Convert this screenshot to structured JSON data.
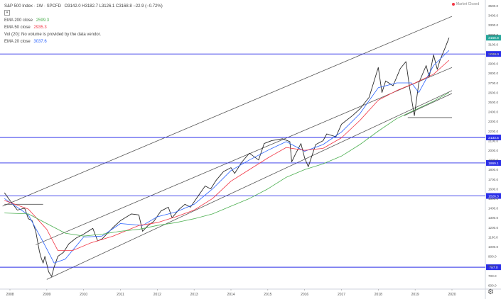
{
  "header": {
    "title": "S&P 500 Index · 1W · SPCFD",
    "ohlc": "O3142.0 H3182.7 L3126.1 C3168.8 −22.9 (−0.72%)",
    "market_status": "Market Closed"
  },
  "legend": [
    {
      "label": "EMA 200 close",
      "value": "2599.3",
      "color": "#4caf50"
    },
    {
      "label": "EMA 50 close",
      "value": "2935.3",
      "color": "#f23645"
    },
    {
      "label": "Vol (20): No volume is provided by the data vendor.",
      "value": "",
      "color": "#444444"
    },
    {
      "label": "EMA 20 close",
      "value": "3037.6",
      "color": "#2962ff"
    }
  ],
  "chart_data": {
    "type": "line",
    "title": "S&P 500 Index",
    "xlabel": "",
    "ylabel": "",
    "x_ticks": [
      "2008",
      "2009",
      "2010",
      "2011",
      "2012",
      "2013",
      "2014",
      "2015",
      "2016",
      "2017",
      "2018",
      "2019",
      "2020"
    ],
    "y_ticks": [
      "600.0",
      "700.0",
      "800.0",
      "900.0",
      "1000.0",
      "1100.0",
      "1200.0",
      "1300.0",
      "1400.0",
      "1500.0",
      "1600.0",
      "1700.0",
      "1800.0",
      "1900.0",
      "2000.0",
      "2100.0",
      "2200.0",
      "2300.0",
      "2400.0",
      "2500.0",
      "2600.0",
      "2700.0",
      "2800.0",
      "2900.0",
      "3000.0",
      "3100.0",
      "3200.0",
      "3300.0",
      "3400.0",
      "3500.0"
    ],
    "xlim": [
      2007.8,
      2020.0
    ],
    "ylim": [
      560,
      3560
    ],
    "series": [
      {
        "name": "S&P 500 Index",
        "color": "#2b2b2b",
        "x": [
          2007.85,
          2008.0,
          2008.2,
          2008.4,
          2008.5,
          2008.6,
          2008.7,
          2008.8,
          2008.85,
          2008.9,
          2008.95,
          2009.05,
          2009.13,
          2009.2,
          2009.3,
          2009.45,
          2009.6,
          2009.8,
          2010.0,
          2010.25,
          2010.38,
          2010.5,
          2010.65,
          2010.8,
          2011.0,
          2011.3,
          2011.5,
          2011.6,
          2011.75,
          2011.9,
          2012.1,
          2012.3,
          2012.4,
          2012.6,
          2012.75,
          2012.9,
          2013.1,
          2013.3,
          2013.45,
          2013.6,
          2013.8,
          2014.0,
          2014.1,
          2014.3,
          2014.5,
          2014.75,
          2014.9,
          2015.1,
          2015.4,
          2015.6,
          2015.65,
          2015.75,
          2015.9,
          2016.0,
          2016.1,
          2016.3,
          2016.5,
          2016.6,
          2016.85,
          2017.0,
          2017.3,
          2017.5,
          2017.75,
          2018.0,
          2018.1,
          2018.2,
          2018.4,
          2018.6,
          2018.75,
          2018.85,
          2018.98,
          2019.1,
          2019.3,
          2019.38,
          2019.5,
          2019.6,
          2019.68,
          2019.8,
          2019.92
        ],
        "values": [
          1560,
          1480,
          1380,
          1400,
          1290,
          1270,
          1160,
          950,
          880,
          830,
          900,
          740,
          690,
          790,
          900,
          940,
          1030,
          1090,
          1130,
          1190,
          1060,
          1080,
          1140,
          1200,
          1270,
          1340,
          1330,
          1160,
          1220,
          1260,
          1370,
          1410,
          1300,
          1390,
          1440,
          1410,
          1520,
          1630,
          1600,
          1690,
          1780,
          1820,
          1760,
          1880,
          1970,
          1900,
          2070,
          2100,
          2120,
          2090,
          1880,
          1960,
          2070,
          1920,
          1830,
          2060,
          2100,
          2170,
          2140,
          2270,
          2360,
          2430,
          2550,
          2860,
          2600,
          2720,
          2670,
          2850,
          2920,
          2650,
          2360,
          2700,
          2880,
          2760,
          2990,
          2840,
          2940,
          3050,
          3168
        ]
      },
      {
        "name": "EMA 20 close",
        "color": "#2962ff",
        "x": [
          2007.85,
          2008.5,
          2008.9,
          2009.2,
          2009.5,
          2010.0,
          2010.5,
          2011.0,
          2011.6,
          2012.0,
          2012.5,
          2013.0,
          2013.5,
          2014.0,
          2014.5,
          2015.0,
          2015.5,
          2016.0,
          2016.5,
          2017.0,
          2017.5,
          2018.0,
          2018.5,
          2018.9,
          2019.1,
          2019.5,
          2019.92
        ],
        "values": [
          1500,
          1330,
          1050,
          830,
          870,
          1100,
          1110,
          1240,
          1220,
          1310,
          1360,
          1440,
          1600,
          1790,
          1900,
          2000,
          2090,
          1990,
          2060,
          2190,
          2380,
          2650,
          2700,
          2700,
          2600,
          2880,
          3037
        ]
      },
      {
        "name": "EMA 50 close",
        "color": "#f23645",
        "x": [
          2007.85,
          2008.5,
          2009.0,
          2009.3,
          2009.7,
          2010.2,
          2010.8,
          2011.5,
          2012.0,
          2012.5,
          2013.0,
          2013.5,
          2014.0,
          2014.5,
          2015.0,
          2015.5,
          2016.0,
          2016.5,
          2017.0,
          2017.5,
          2018.0,
          2018.5,
          2019.0,
          2019.5,
          2019.92
        ],
        "values": [
          1480,
          1390,
          1180,
          960,
          960,
          1040,
          1110,
          1220,
          1250,
          1310,
          1380,
          1500,
          1680,
          1800,
          1920,
          2030,
          2000,
          2020,
          2130,
          2310,
          2520,
          2620,
          2700,
          2790,
          2935
        ]
      },
      {
        "name": "EMA 200 close",
        "color": "#4caf50",
        "x": [
          2007.85,
          2008.5,
          2009.0,
          2009.5,
          2010.0,
          2010.5,
          2011.0,
          2011.5,
          2012.0,
          2012.5,
          2013.0,
          2013.5,
          2014.0,
          2014.5,
          2015.0,
          2015.5,
          2016.0,
          2016.5,
          2017.0,
          2017.5,
          2018.0,
          2018.5,
          2019.0,
          2019.5,
          2019.92
        ],
        "values": [
          1350,
          1340,
          1240,
          1140,
          1110,
          1130,
          1160,
          1180,
          1220,
          1250,
          1290,
          1340,
          1420,
          1500,
          1600,
          1720,
          1800,
          1860,
          1940,
          2060,
          2200,
          2330,
          2420,
          2510,
          2599
        ]
      }
    ],
    "horizontal_levels": [
      {
        "value": 3000.0,
        "label": "3000.0"
      },
      {
        "value": 2133.5,
        "label": "2133.5"
      },
      {
        "value": 1869.1,
        "label": "1869.1"
      },
      {
        "value": 1526.3,
        "label": "1526.3"
      },
      {
        "value": 787.0,
        "label": "787.0"
      }
    ],
    "current_price": {
      "value": 3168.8,
      "label": "3168.8"
    },
    "grid": false,
    "legend_position": "top-left"
  }
}
